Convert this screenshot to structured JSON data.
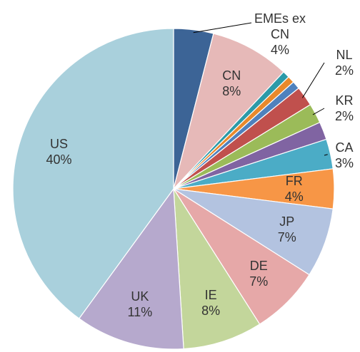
{
  "chart_data": {
    "type": "pie",
    "categories": [
      "EMEs ex CN",
      "CN",
      null,
      null,
      null,
      "NL",
      "KR",
      null,
      "CA",
      "FR",
      "JP",
      "DE",
      "IE",
      "UK",
      "US"
    ],
    "values": [
      4,
      8,
      0.7,
      0.7,
      0.8,
      2,
      2,
      1.8,
      3,
      4,
      7,
      7,
      8,
      11,
      40
    ],
    "value_labels": [
      "4%",
      "8%",
      null,
      null,
      null,
      "2%",
      "2%",
      null,
      "3%",
      "4%",
      "7%",
      "7%",
      "8%",
      "11%",
      "40%"
    ],
    "colors": [
      "#3c6496",
      "#e6b9b8",
      "#2c9aa8",
      "#e8892c",
      "#4f81bd",
      "#c0504d",
      "#9bbb59",
      "#8064a2",
      "#4bacc6",
      "#f79646",
      "#b3c3e0",
      "#e6a8a8",
      "#c3d69b",
      "#b6a9cd",
      "#a9d0dc"
    ]
  }
}
